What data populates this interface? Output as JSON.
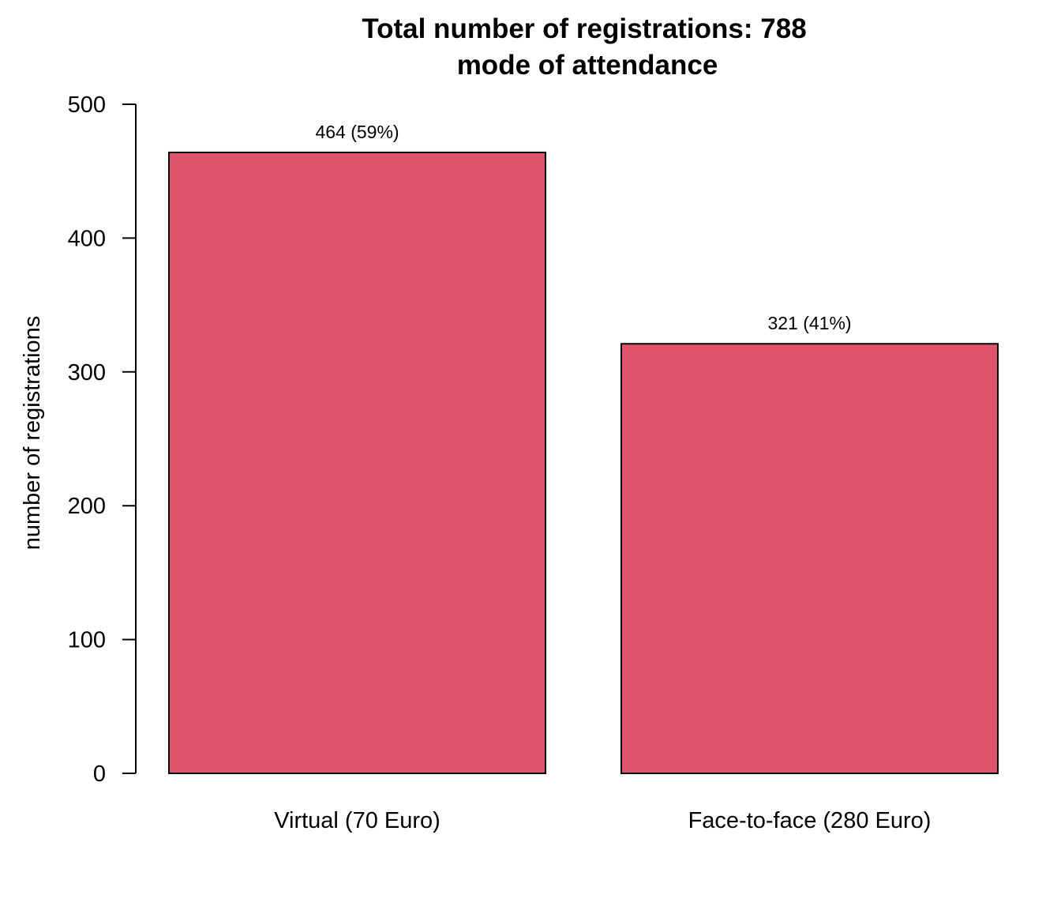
{
  "chart_data": {
    "type": "bar",
    "title": "Total number of registrations: 788",
    "subtitle": "mode of attendance",
    "xlabel": "",
    "ylabel": "number of registrations",
    "categories": [
      "Virtual (70 Euro)",
      "Face-to-face (280 Euro)"
    ],
    "values": [
      464,
      321
    ],
    "data_labels": [
      "464 (59%)",
      "321 (41%)"
    ],
    "ylim": [
      0,
      500
    ],
    "yticks": [
      0,
      100,
      200,
      300,
      400,
      500
    ],
    "ytick_labels": [
      "0",
      "100",
      "200",
      "300",
      "400",
      "500"
    ],
    "grid": false,
    "legend": "none",
    "bar_color": "#DF536B",
    "bar_border_color": "#000000"
  }
}
